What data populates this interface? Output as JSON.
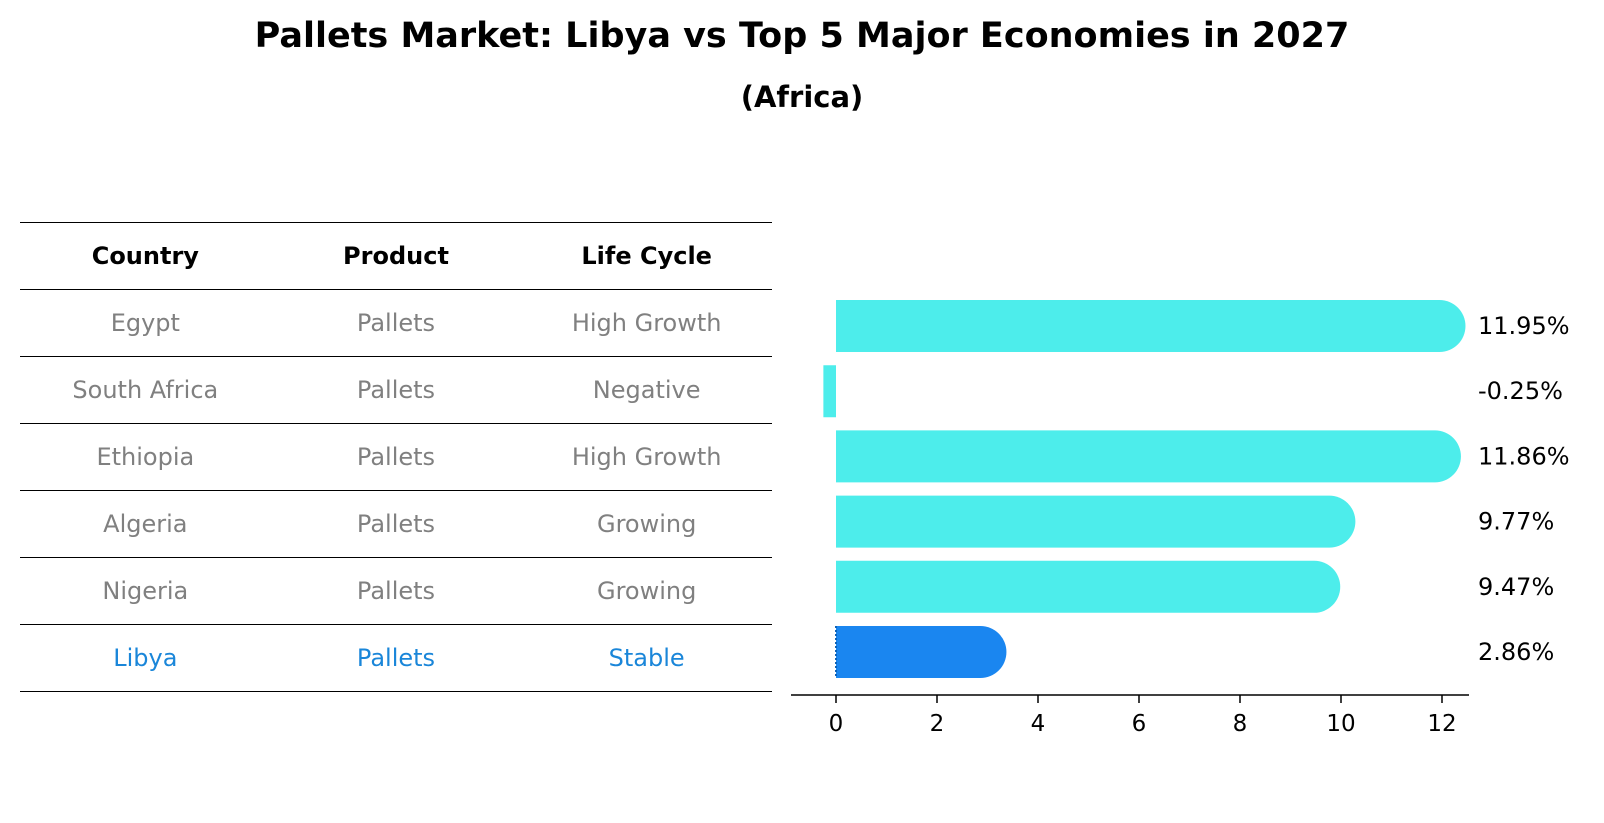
{
  "title": "Pallets Market: Libya vs Top 5 Major Economies in 2027",
  "subtitle": "(Africa)",
  "table": {
    "headers": [
      "Country",
      "Product",
      "Life Cycle"
    ],
    "rows": [
      {
        "country": "Egypt",
        "product": "Pallets",
        "life_cycle": "High Growth"
      },
      {
        "country": "South Africa",
        "product": "Pallets",
        "life_cycle": "Negative"
      },
      {
        "country": "Ethiopia",
        "product": "Pallets",
        "life_cycle": "High Growth"
      },
      {
        "country": "Algeria",
        "product": "Pallets",
        "life_cycle": "Growing"
      },
      {
        "country": "Nigeria",
        "product": "Pallets",
        "life_cycle": "Growing"
      },
      {
        "country": "Libya",
        "product": "Pallets",
        "life_cycle": "Stable"
      }
    ],
    "highlight_row": "Libya"
  },
  "colors": {
    "bar": "#4dedeb",
    "highlight_bar": "#1a86f0",
    "highlight_text": "#1a86d9",
    "muted_text": "#808080"
  },
  "chart_data": {
    "type": "bar",
    "orientation": "horizontal",
    "categories": [
      "Egypt",
      "South Africa",
      "Ethiopia",
      "Algeria",
      "Nigeria",
      "Libya"
    ],
    "values": [
      11.95,
      -0.25,
      11.86,
      9.77,
      9.47,
      2.86
    ],
    "value_labels": [
      "11.95%",
      "-0.25%",
      "11.86%",
      "9.77%",
      "9.47%",
      "2.86%"
    ],
    "xticks": [
      "0",
      "2",
      "4",
      "6",
      "8",
      "10",
      "12"
    ],
    "xlim": [
      -0.9,
      12.6
    ],
    "highlight": "Libya",
    "grid": false
  }
}
